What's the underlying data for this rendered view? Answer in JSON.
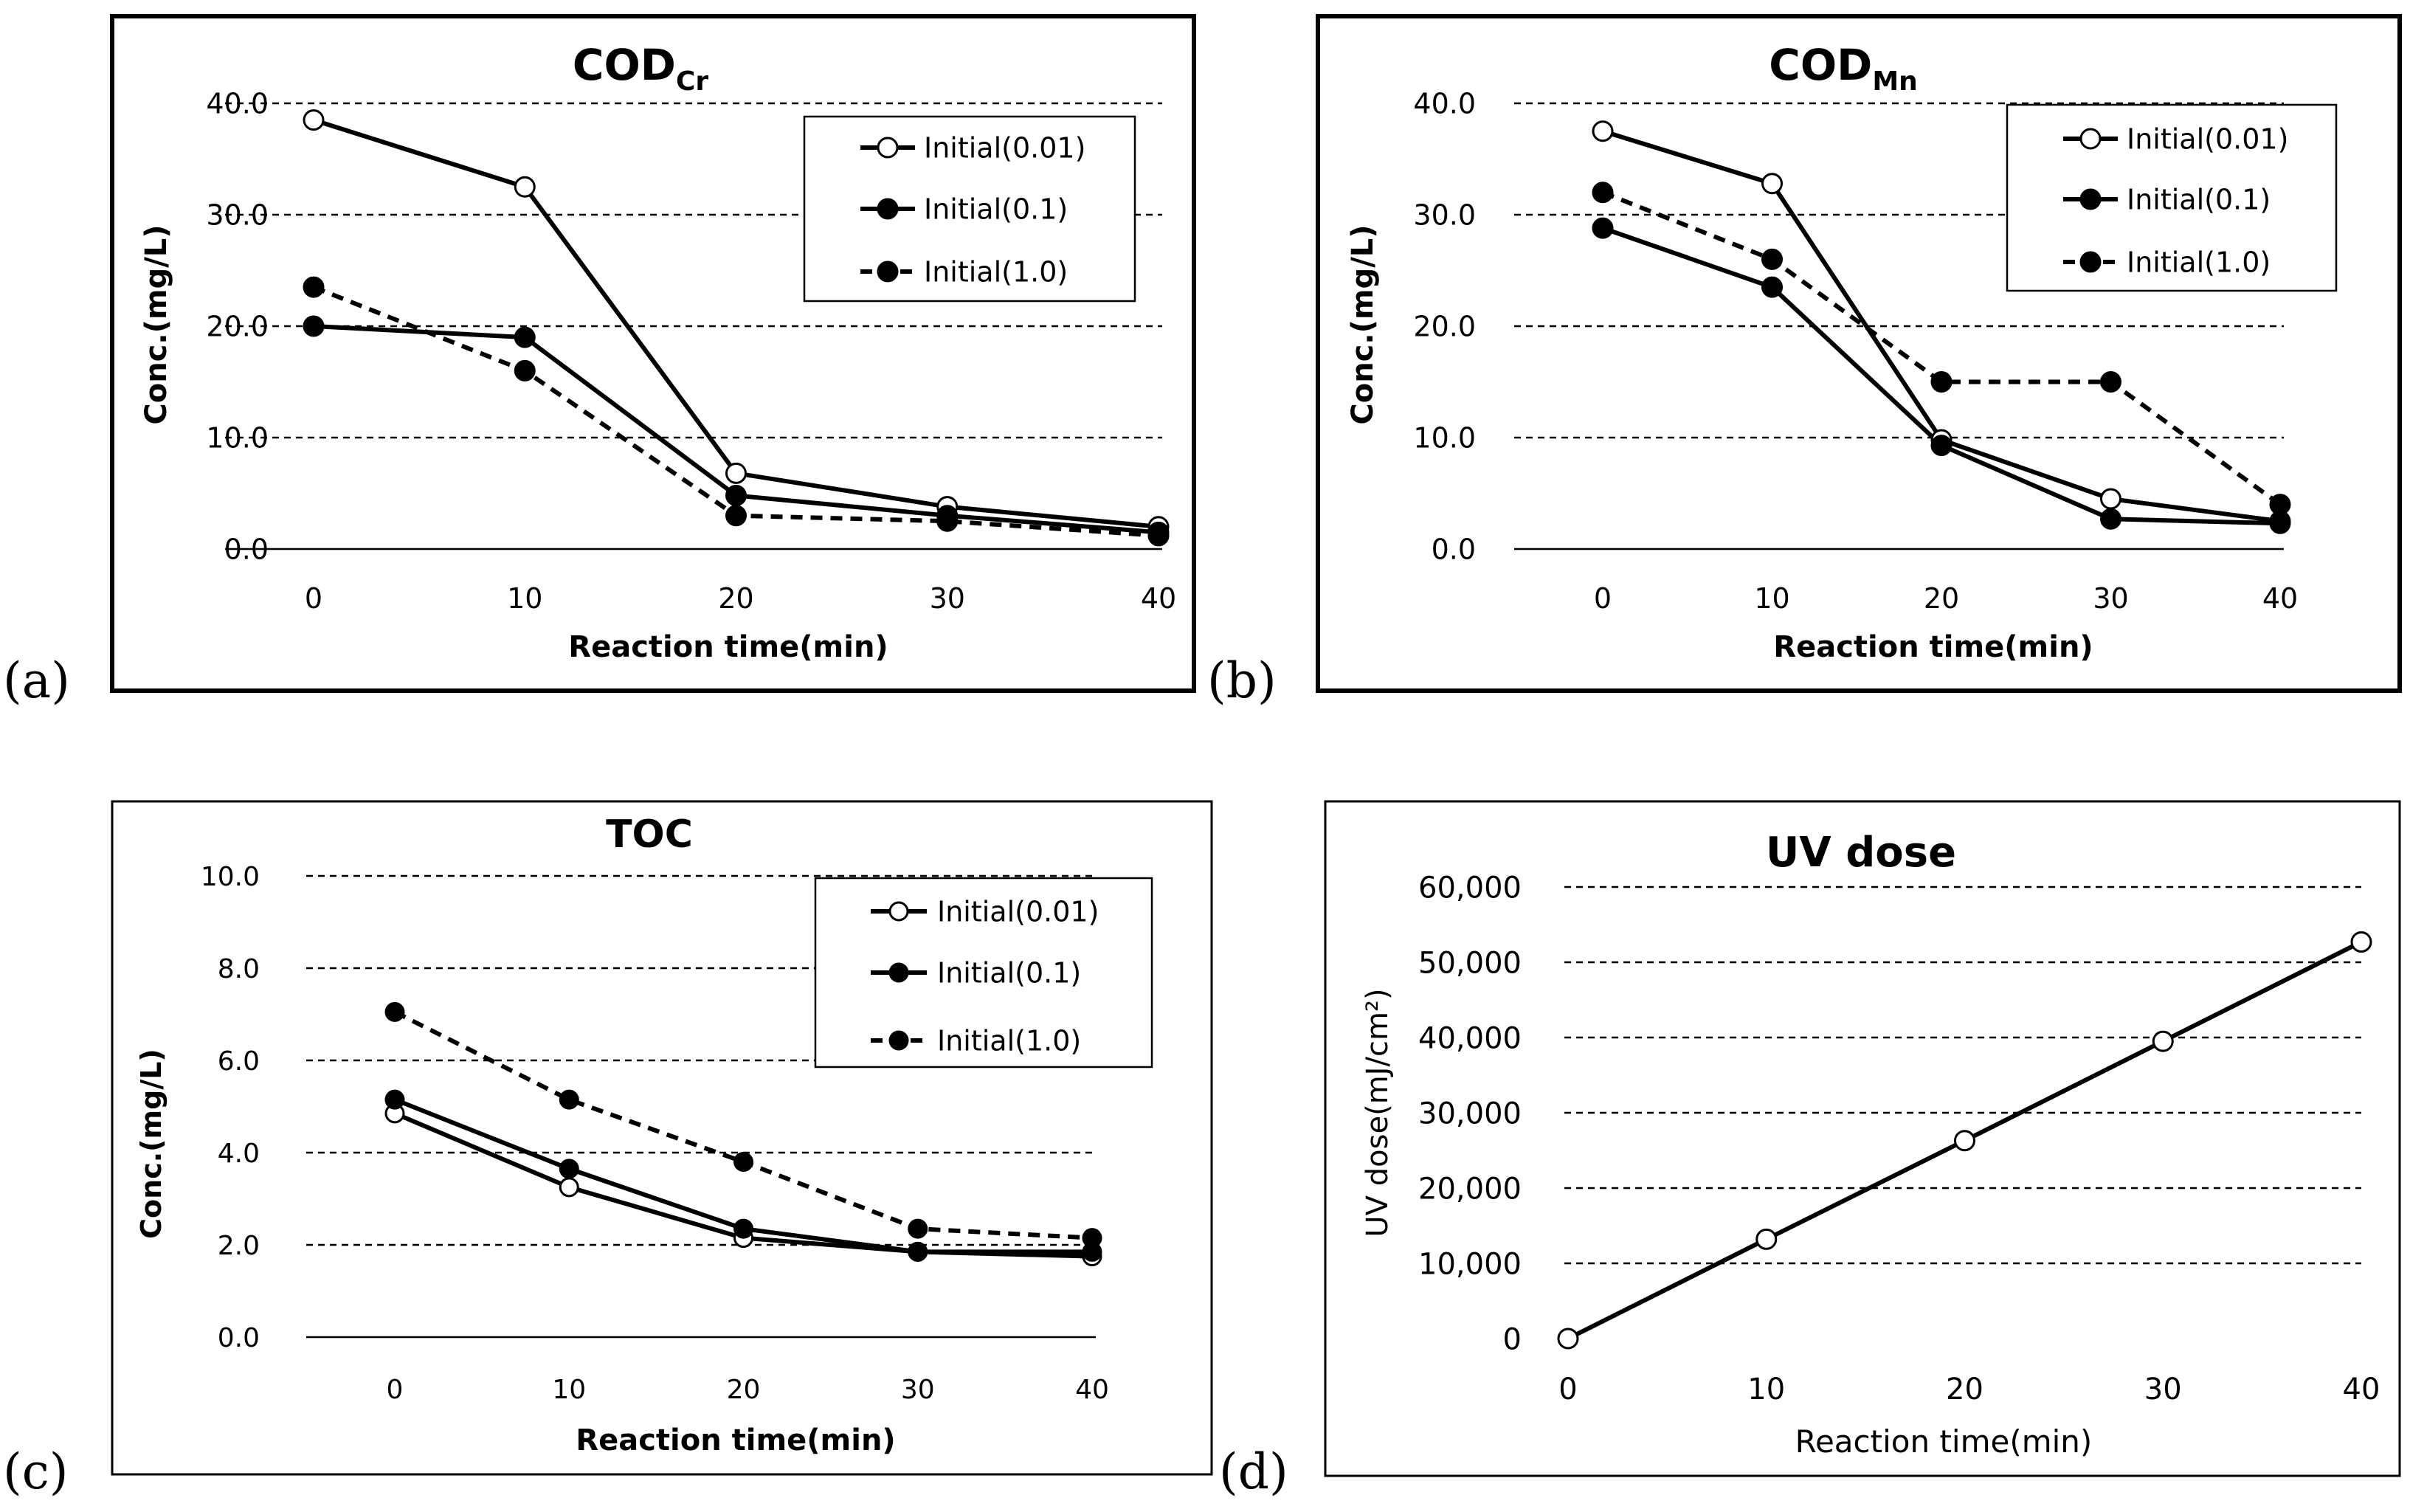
{
  "chart_data": [
    {
      "type": "line",
      "panel_label": "(a)",
      "title": "COD",
      "title_sub": "Cr",
      "xlabel": "Reaction time(min)",
      "ylabel": "Conc.(mg/L)",
      "x": [
        0,
        10,
        20,
        30,
        40
      ],
      "xticks": [
        "0",
        "10",
        "20",
        "30",
        "40"
      ],
      "ylim": [
        0,
        40
      ],
      "yticks": [
        "0.0",
        "10.0",
        "20.0",
        "30.0",
        "40.0"
      ],
      "ytick_values": [
        0,
        10,
        20,
        30,
        40
      ],
      "grid": true,
      "legend_position": "top-right",
      "series": [
        {
          "name": "Initial(0.01)",
          "values": [
            38.5,
            32.5,
            6.8,
            3.8,
            2.0
          ],
          "marker": "open",
          "dash": false
        },
        {
          "name": "Initial(0.1)",
          "values": [
            20.0,
            19.0,
            4.8,
            3.0,
            1.5
          ],
          "marker": "filled",
          "dash": false
        },
        {
          "name": "Initial(1.0)",
          "values": [
            23.5,
            16.0,
            3.0,
            2.5,
            1.2
          ],
          "marker": "filled",
          "dash": true
        }
      ]
    },
    {
      "type": "line",
      "panel_label": "(b)",
      "title": "COD",
      "title_sub": "Mn",
      "xlabel": "Reaction time(min)",
      "ylabel": "Conc.(mg/L)",
      "x": [
        0,
        10,
        20,
        30,
        40
      ],
      "xticks": [
        "0",
        "10",
        "20",
        "30",
        "40"
      ],
      "ylim": [
        0,
        40
      ],
      "yticks": [
        "0.0",
        "10.0",
        "20.0",
        "30.0",
        "40.0"
      ],
      "ytick_values": [
        0,
        10,
        20,
        30,
        40
      ],
      "grid": true,
      "legend_position": "top-right",
      "series": [
        {
          "name": "Initial(0.01)",
          "values": [
            37.5,
            32.8,
            9.8,
            4.5,
            2.5
          ],
          "marker": "open",
          "dash": false
        },
        {
          "name": "Initial(0.1)",
          "values": [
            28.8,
            23.5,
            9.3,
            2.7,
            2.3
          ],
          "marker": "filled",
          "dash": false
        },
        {
          "name": "Initial(1.0)",
          "values": [
            32.0,
            26.0,
            15.0,
            15.0,
            4.0
          ],
          "marker": "filled",
          "dash": true
        }
      ]
    },
    {
      "type": "line",
      "panel_label": "(c)",
      "title": "TOC",
      "title_sub": "",
      "xlabel": "Reaction time(min)",
      "ylabel": "Conc.(mg/L)",
      "x": [
        0,
        10,
        20,
        30,
        40
      ],
      "xticks": [
        "0",
        "10",
        "20",
        "30",
        "40"
      ],
      "ylim": [
        0,
        10
      ],
      "yticks": [
        "0.0",
        "2.0",
        "4.0",
        "6.0",
        "8.0",
        "10.0"
      ],
      "ytick_values": [
        0,
        2,
        4,
        6,
        8,
        10
      ],
      "grid": true,
      "legend_position": "top-right",
      "series": [
        {
          "name": "Initial(0.01)",
          "values": [
            4.85,
            3.25,
            2.15,
            1.85,
            1.75
          ],
          "marker": "open",
          "dash": false
        },
        {
          "name": "Initial(0.1)",
          "values": [
            5.15,
            3.65,
            2.35,
            1.85,
            1.85
          ],
          "marker": "filled",
          "dash": false
        },
        {
          "name": "Initial(1.0)",
          "values": [
            7.05,
            5.15,
            3.8,
            2.35,
            2.15
          ],
          "marker": "filled",
          "dash": true
        }
      ]
    },
    {
      "type": "line",
      "panel_label": "(d)",
      "title": "UV dose",
      "title_sub": "",
      "xlabel": "Reaction time(min)",
      "ylabel": "UV dose(mJ/cm²)",
      "x": [
        0,
        10,
        20,
        30,
        40
      ],
      "xticks": [
        "0",
        "10",
        "20",
        "30",
        "40"
      ],
      "ylim": [
        0,
        60000
      ],
      "yticks": [
        "0",
        "10,000",
        "20,000",
        "30,000",
        "40,000",
        "50,000",
        "60,000"
      ],
      "ytick_values": [
        0,
        10000,
        20000,
        30000,
        40000,
        50000,
        60000
      ],
      "grid": true,
      "legend_position": "none",
      "series": [
        {
          "name": "UV dose",
          "values": [
            0,
            13200,
            26300,
            39500,
            52700
          ],
          "marker": "open",
          "dash": false
        }
      ]
    }
  ]
}
